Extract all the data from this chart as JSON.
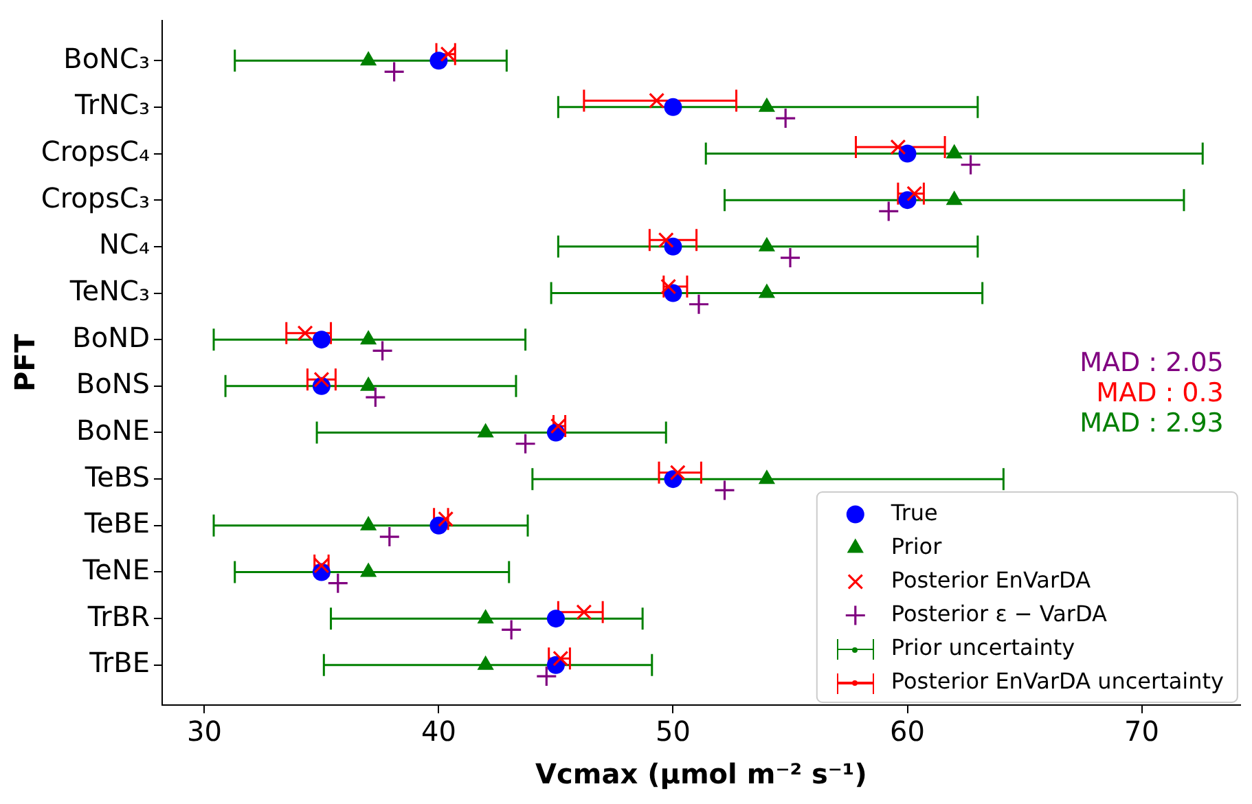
{
  "chart_data": {
    "type": "scatter",
    "orientation": "horizontal",
    "xlabel": "Vcmax (μmol m⁻² s⁻¹)",
    "ylabel": "PFT",
    "categories": [
      "BoNC₃",
      "TrNC₃",
      "CropsC₄",
      "CropsC₃",
      "NC₄",
      "TeNC₃",
      "BoND",
      "BoNS",
      "BoNE",
      "TeBS",
      "TeBE",
      "TeNE",
      "TrBR",
      "TrBE"
    ],
    "xlim": [
      28.2,
      74.2
    ],
    "xticks": [
      30,
      40,
      50,
      60,
      70
    ],
    "grid": false,
    "legend": "bottom right",
    "series": [
      {
        "name": "True",
        "color": "#0000ff",
        "marker": "circle",
        "values": [
          40,
          50,
          60,
          60,
          50,
          50,
          35,
          35,
          45,
          50,
          40,
          35,
          45,
          45
        ]
      },
      {
        "name": "Prior",
        "color": "#008000",
        "marker": "triangle",
        "values": [
          37,
          54,
          62,
          62,
          54,
          54,
          37,
          37,
          42,
          54,
          37,
          37,
          42,
          42
        ],
        "errors": [
          [
            31.3,
            42.9
          ],
          [
            45.1,
            63.0
          ],
          [
            51.4,
            72.6
          ],
          [
            52.2,
            71.8
          ],
          [
            45.1,
            63.0
          ],
          [
            44.8,
            63.2
          ],
          [
            30.4,
            43.7
          ],
          [
            30.9,
            43.3
          ],
          [
            34.8,
            49.7
          ],
          [
            44.0,
            64.1
          ],
          [
            30.4,
            43.8
          ],
          [
            31.3,
            43.0
          ],
          [
            35.4,
            48.7
          ],
          [
            35.1,
            49.1
          ]
        ]
      },
      {
        "name": "Posterior EnVarDA",
        "color": "#ff0000",
        "marker": "x",
        "values": [
          40.4,
          49.3,
          59.6,
          60.3,
          49.7,
          49.8,
          34.3,
          35.0,
          45.1,
          50.2,
          40.3,
          35.0,
          46.2,
          45.2
        ],
        "errors": [
          [
            39.9,
            40.7
          ],
          [
            46.2,
            52.7
          ],
          [
            57.8,
            61.6
          ],
          [
            59.6,
            60.7
          ],
          [
            49.0,
            51.0
          ],
          [
            49.6,
            50.6
          ],
          [
            33.5,
            35.4
          ],
          [
            34.4,
            35.6
          ],
          [
            44.9,
            45.4
          ],
          [
            49.4,
            51.2
          ],
          [
            39.8,
            40.4
          ],
          [
            34.7,
            35.3
          ],
          [
            45.1,
            47.0
          ],
          [
            44.7,
            45.6
          ]
        ]
      },
      {
        "name": "Posterior ε − VarDA",
        "color": "#800080",
        "marker": "cross",
        "values": [
          38.1,
          54.8,
          62.7,
          59.2,
          55.0,
          51.1,
          37.6,
          37.3,
          43.7,
          52.2,
          37.9,
          35.7,
          43.1,
          44.6
        ]
      }
    ],
    "annotations": [
      "MAD : 2.05",
      "MAD : 0.3",
      "MAD : 2.93",
      "Prior uncertainty",
      "Posterior EnVarDA uncertainty"
    ]
  }
}
